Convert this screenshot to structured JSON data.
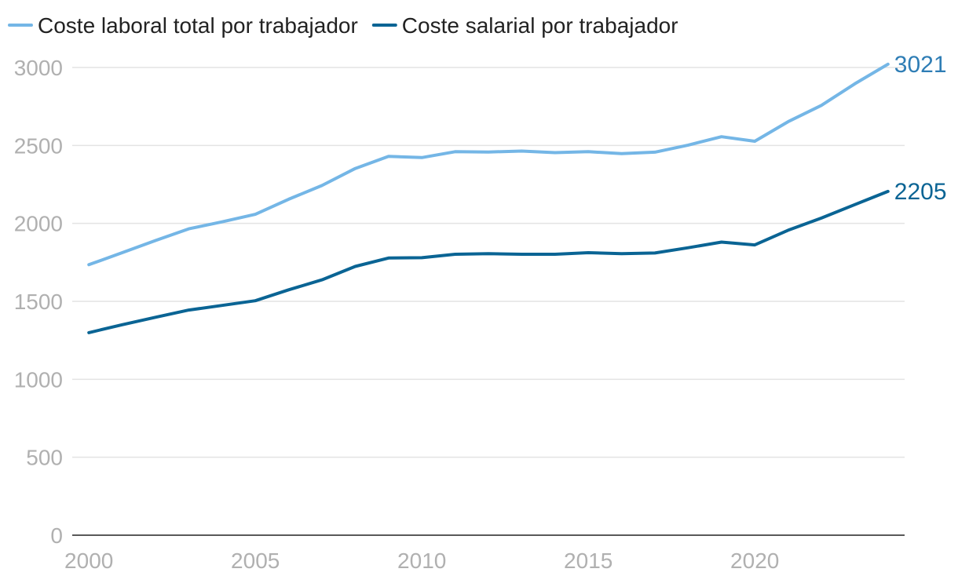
{
  "chart_data": {
    "type": "line",
    "x": [
      2000,
      2001,
      2002,
      2003,
      2004,
      2005,
      2006,
      2007,
      2008,
      2009,
      2010,
      2011,
      2012,
      2013,
      2014,
      2015,
      2016,
      2017,
      2018,
      2019,
      2020,
      2021,
      2022,
      2023,
      2024
    ],
    "series": [
      {
        "name": "Coste laboral total por trabajador",
        "color": "#74b6e6",
        "values": [
          1735,
          1812,
          1890,
          1965,
          2010,
          2058,
          2155,
          2243,
          2352,
          2430,
          2422,
          2460,
          2458,
          2464,
          2454,
          2460,
          2448,
          2457,
          2502,
          2556,
          2527,
          2652,
          2757,
          2895,
          3021
        ],
        "end_label": "3021",
        "end_label_color": "#2e7db5"
      },
      {
        "name": "Coste salarial por trabajador",
        "color": "#0a6494",
        "values": [
          1299,
          1350,
          1398,
          1444,
          1474,
          1504,
          1574,
          1638,
          1724,
          1778,
          1780,
          1802,
          1806,
          1802,
          1802,
          1812,
          1806,
          1810,
          1844,
          1880,
          1862,
          1956,
          2034,
          2120,
          2205
        ],
        "end_label": "2205",
        "end_label_color": "#0a6494"
      }
    ],
    "xlim": [
      1999.5,
      2024.5
    ],
    "ylim": [
      0,
      3000
    ],
    "x_ticks": [
      2000,
      2005,
      2010,
      2015,
      2020
    ],
    "y_ticks": [
      0,
      500,
      1000,
      1500,
      2000,
      2500,
      3000
    ],
    "grid": true,
    "legend_position": "top-left",
    "title": "",
    "xlabel": "",
    "ylabel": ""
  },
  "colors": {
    "grid": "#e3e3e3",
    "axis": "#222222",
    "tick_text": "#b0b0b0"
  }
}
